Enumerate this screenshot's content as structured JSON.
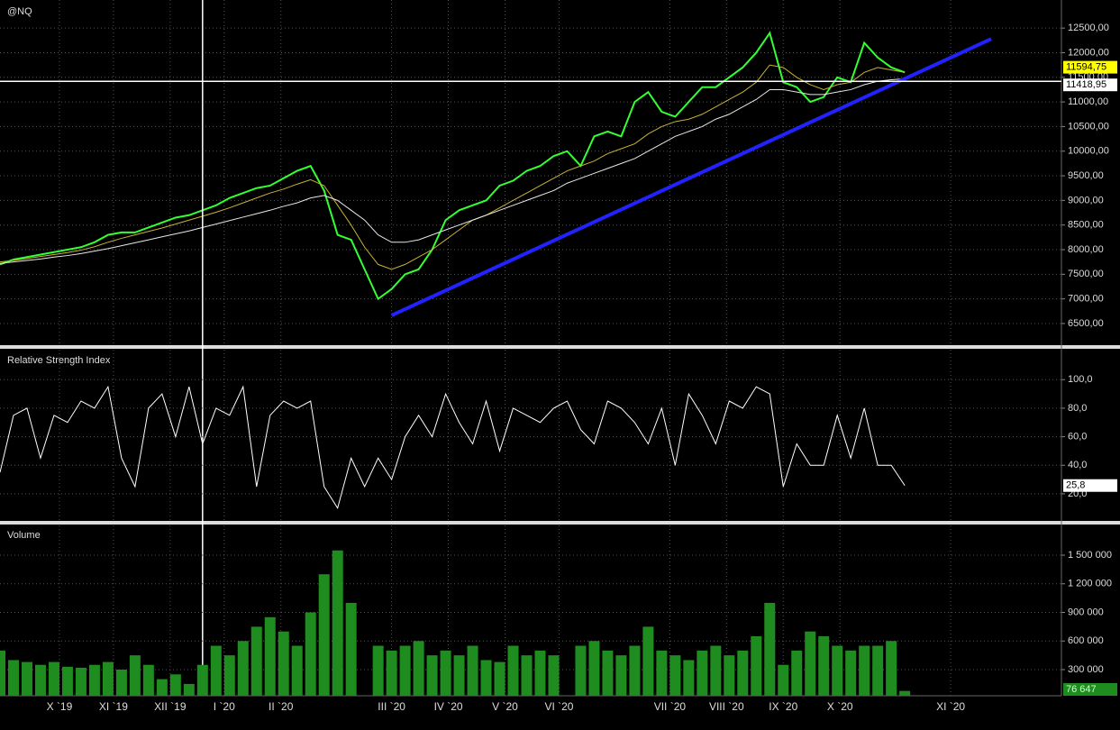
{
  "chart_data": [
    {
      "type": "line",
      "title": "@NQ",
      "x": [
        0,
        5,
        10,
        15,
        20,
        25,
        30,
        35,
        40,
        45,
        50,
        55,
        60,
        65,
        70,
        75,
        80,
        85,
        90,
        95,
        100,
        105,
        110,
        115,
        120,
        125,
        130,
        135,
        140,
        145,
        150,
        155,
        160,
        165,
        170,
        175,
        180,
        185,
        190,
        195,
        200,
        205,
        210,
        215,
        220,
        225,
        230,
        235,
        240,
        245,
        250,
        255,
        260,
        265,
        270,
        275,
        280,
        285,
        290,
        295,
        300,
        305,
        310,
        315,
        320,
        325,
        330,
        335
      ],
      "series": [
        {
          "color": "#33ff33",
          "values": [
            7700,
            7800,
            7850,
            7900,
            7950,
            8000,
            8050,
            8150,
            8300,
            8350,
            8350,
            8450,
            8550,
            8650,
            8700,
            8800,
            8900,
            9050,
            9150,
            9250,
            9300,
            9450,
            9600,
            9700,
            9200,
            8300,
            8200,
            7600,
            7000,
            7200,
            7500,
            7600,
            8000,
            8600,
            8800,
            8900,
            9000,
            9300,
            9400,
            9600,
            9700,
            9900,
            10000,
            9700,
            10300,
            10400,
            10300,
            11000,
            11200,
            10800,
            10700,
            11000,
            11300,
            11300,
            11500,
            11700,
            12000,
            12400,
            11400,
            11300,
            11000,
            11100,
            11500,
            11400,
            12200,
            11900,
            11700,
            11600
          ]
        },
        {
          "color": "#c8b432",
          "values": [
            7750,
            7780,
            7820,
            7860,
            7900,
            7940,
            7990,
            8060,
            8150,
            8230,
            8300,
            8370,
            8440,
            8520,
            8600,
            8680,
            8760,
            8850,
            8950,
            9050,
            9150,
            9230,
            9330,
            9420,
            9300,
            8900,
            8500,
            8050,
            7700,
            7600,
            7700,
            7850,
            8000,
            8200,
            8400,
            8600,
            8700,
            8850,
            9000,
            9150,
            9300,
            9450,
            9600,
            9700,
            9800,
            9950,
            10050,
            10150,
            10350,
            10500,
            10600,
            10650,
            10750,
            10900,
            11050,
            11200,
            11400,
            11750,
            11700,
            11500,
            11350,
            11250,
            11350,
            11400,
            11600,
            11700,
            11650,
            11600
          ]
        },
        {
          "color": "#e8e8e8",
          "values": [
            7720,
            7750,
            7780,
            7810,
            7850,
            7880,
            7920,
            7970,
            8020,
            8080,
            8140,
            8200,
            8260,
            8320,
            8380,
            8450,
            8520,
            8590,
            8660,
            8730,
            8800,
            8880,
            8950,
            9050,
            9100,
            9000,
            8800,
            8600,
            8300,
            8150,
            8150,
            8200,
            8300,
            8400,
            8500,
            8600,
            8700,
            8800,
            8900,
            9000,
            9100,
            9200,
            9350,
            9450,
            9550,
            9650,
            9750,
            9850,
            10000,
            10150,
            10300,
            10400,
            10500,
            10650,
            10750,
            10900,
            11050,
            11250,
            11250,
            11200,
            11150,
            11150,
            11200,
            11250,
            11350,
            11420,
            11450,
            11470
          ]
        }
      ],
      "xlim": [
        0,
        393
      ],
      "ylim": [
        6060,
        13070
      ],
      "yticks": [
        {
          "value": 6500,
          "label": "6500,00"
        },
        {
          "value": 7000,
          "label": "7000,00"
        },
        {
          "value": 7500,
          "label": "7500,00"
        },
        {
          "value": 8000,
          "label": "8000,00"
        },
        {
          "value": 8500,
          "label": "8500,00"
        },
        {
          "value": 9000,
          "label": "9000,00"
        },
        {
          "value": 9500,
          "label": "9500,00"
        },
        {
          "value": 10000,
          "label": "10000,00"
        },
        {
          "value": 10500,
          "label": "10500,00"
        },
        {
          "value": 11000,
          "label": "11000,00"
        },
        {
          "value": 11500,
          "label": "11500,00"
        },
        {
          "value": 12000,
          "label": "12000,00"
        },
        {
          "value": 12500,
          "label": "12500,00"
        }
      ],
      "last_labels": [
        {
          "value": 11594.75,
          "label": "11594,75",
          "color": "#ffff00"
        },
        {
          "value": 11418.95,
          "label": "11418,95",
          "color": "#ffffff"
        }
      ],
      "trendline": {
        "x": [
          145,
          367
        ],
        "y": [
          6665,
          12280
        ],
        "color": "#2222ff"
      },
      "cursor_x": 75,
      "grid": true
    },
    {
      "type": "line",
      "title": "Relative Strength Index",
      "x": [
        0,
        5,
        10,
        15,
        20,
        25,
        30,
        35,
        40,
        45,
        50,
        55,
        60,
        65,
        70,
        75,
        80,
        85,
        90,
        95,
        100,
        105,
        110,
        115,
        120,
        125,
        130,
        135,
        140,
        145,
        150,
        155,
        160,
        165,
        170,
        175,
        180,
        185,
        190,
        195,
        200,
        205,
        210,
        215,
        220,
        225,
        230,
        235,
        240,
        245,
        250,
        255,
        260,
        265,
        270,
        275,
        280,
        285,
        290,
        295,
        300,
        305,
        310,
        315,
        320,
        325,
        330,
        335
      ],
      "series": [
        {
          "color": "#ffffff",
          "values": [
            35,
            75,
            80,
            45,
            75,
            70,
            85,
            80,
            95,
            45,
            25,
            80,
            90,
            60,
            95,
            55,
            80,
            75,
            95,
            25,
            75,
            85,
            80,
            85,
            25,
            10,
            45,
            25,
            45,
            30,
            60,
            75,
            60,
            90,
            70,
            55,
            85,
            50,
            80,
            75,
            70,
            80,
            85,
            65,
            55,
            85,
            80,
            70,
            55,
            80,
            40,
            90,
            75,
            55,
            85,
            80,
            95,
            90,
            25,
            55,
            40,
            40,
            75,
            45,
            80,
            40,
            40,
            25.8
          ]
        }
      ],
      "xlim": [
        0,
        393
      ],
      "ylim": [
        1,
        121
      ],
      "yticks": [
        {
          "value": 20,
          "label": "20,0"
        },
        {
          "value": 40,
          "label": "40,0"
        },
        {
          "value": 60,
          "label": "60,0"
        },
        {
          "value": 80,
          "label": "80,0"
        },
        {
          "value": 100,
          "label": "100,0"
        }
      ],
      "last_labels": [
        {
          "value": 25.8,
          "label": "25,8",
          "color": "#ffffff"
        }
      ],
      "grid": true
    },
    {
      "type": "bar",
      "title": "Volume",
      "x": [
        0,
        5,
        10,
        15,
        20,
        25,
        30,
        35,
        40,
        45,
        50,
        55,
        60,
        65,
        70,
        75,
        80,
        85,
        90,
        95,
        100,
        105,
        110,
        115,
        120,
        125,
        130,
        135,
        140,
        145,
        150,
        155,
        160,
        165,
        170,
        175,
        180,
        185,
        190,
        195,
        200,
        205,
        210,
        215,
        220,
        225,
        230,
        235,
        240,
        245,
        250,
        255,
        260,
        265,
        270,
        275,
        280,
        285,
        290,
        295,
        300,
        305,
        310,
        315,
        320,
        325,
        330,
        335
      ],
      "series": [
        {
          "color": "#1e8c1e",
          "values": [
            500000,
            400000,
            380000,
            350000,
            380000,
            330000,
            320000,
            350000,
            380000,
            300000,
            450000,
            350000,
            200000,
            250000,
            150000,
            350000,
            550000,
            450000,
            600000,
            750000,
            850000,
            700000,
            550000,
            900000,
            1300000,
            1550000,
            1000000,
            30000,
            550000,
            500000,
            550000,
            600000,
            450000,
            500000,
            450000,
            550000,
            400000,
            380000,
            550000,
            450000,
            500000,
            450000,
            30000,
            550000,
            600000,
            500000,
            450000,
            550000,
            750000,
            500000,
            450000,
            400000,
            500000,
            550000,
            450000,
            500000,
            650000,
            1000000,
            350000,
            500000,
            700000,
            650000,
            550000,
            500000,
            550000,
            550000,
            600000,
            76647
          ]
        }
      ],
      "xlim": [
        0,
        393
      ],
      "ylim": [
        26000,
        1812000
      ],
      "yticks": [
        {
          "value": 300000,
          "label": "300 000"
        },
        {
          "value": 600000,
          "label": "600 000"
        },
        {
          "value": 900000,
          "label": "900 000"
        },
        {
          "value": 1200000,
          "label": "1 200 000"
        },
        {
          "value": 1500000,
          "label": "1 500 000"
        }
      ],
      "xticks": [
        {
          "value": 22,
          "label": "X `19"
        },
        {
          "value": 42,
          "label": "XI `19"
        },
        {
          "value": 63,
          "label": "XII `19"
        },
        {
          "value": 83,
          "label": "I `20"
        },
        {
          "value": 104,
          "label": "II `20"
        },
        {
          "value": 145,
          "label": "III `20"
        },
        {
          "value": 166,
          "label": "IV `20"
        },
        {
          "value": 187,
          "label": "V `20"
        },
        {
          "value": 207,
          "label": "VI `20"
        },
        {
          "value": 248,
          "label": "VII `20"
        },
        {
          "value": 269,
          "label": "VIII `20"
        },
        {
          "value": 290,
          "label": "IX `20"
        },
        {
          "value": 311,
          "label": "X `20"
        },
        {
          "value": 352,
          "label": "XI `20"
        }
      ],
      "last_labels": [
        {
          "value": 76647,
          "label": "76 647",
          "color": "#1e8c1e"
        }
      ],
      "grid": true
    }
  ]
}
